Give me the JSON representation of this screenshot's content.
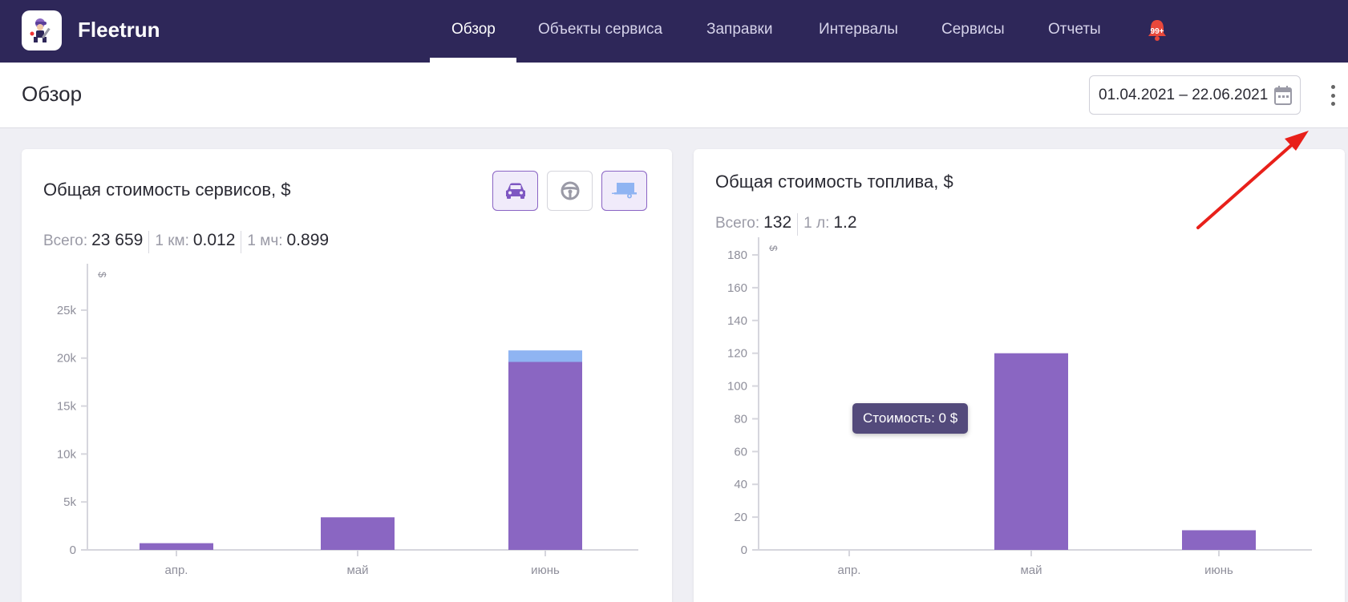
{
  "app": {
    "brand": "Fleetrun"
  },
  "nav": {
    "items": [
      {
        "label": "Обзор",
        "active": true
      },
      {
        "label": "Объекты сервиса",
        "active": false
      },
      {
        "label": "Заправки",
        "active": false
      },
      {
        "label": "Интервалы",
        "active": false
      },
      {
        "label": "Сервисы",
        "active": false
      },
      {
        "label": "Отчеты",
        "active": false
      }
    ],
    "notifications_badge": "99+"
  },
  "page": {
    "title": "Обзор",
    "date_range": "01.04.2021 – 22.06.2021"
  },
  "services_card": {
    "title": "Общая стоимость сервисов, $",
    "stats": [
      {
        "label": "Всего:",
        "value": "23 659"
      },
      {
        "label": "1 км:",
        "value": "0.012"
      },
      {
        "label": "1 мч:",
        "value": "0.899"
      }
    ],
    "filters": [
      {
        "icon": "car-icon",
        "active": true
      },
      {
        "icon": "steering-wheel-icon",
        "active": false
      },
      {
        "icon": "trailer-icon",
        "active": true
      }
    ]
  },
  "fuel_card": {
    "title": "Общая стоимость топлива, $",
    "stats": [
      {
        "label": "Всего:",
        "value": "132"
      },
      {
        "label": "1 л:",
        "value": "1.2"
      }
    ],
    "tooltip": "Стоимость: 0 $"
  },
  "chart_data": [
    {
      "type": "bar",
      "stacked": true,
      "categories": [
        "апр.",
        "май",
        "июнь"
      ],
      "series": [
        {
          "values": [
            700,
            3400,
            19600
          ],
          "color": "#8a66c2"
        },
        {
          "values": [
            0,
            0,
            1200
          ],
          "color": "#8fb4f2"
        }
      ],
      "ylim": [
        0,
        28000
      ],
      "yticks": [
        0,
        5000,
        10000,
        15000,
        20000,
        25000
      ],
      "ytick_labels": [
        "0",
        "5k",
        "10k",
        "15k",
        "20k",
        "25k"
      ],
      "ylabel": "$",
      "grid": false
    },
    {
      "type": "bar",
      "categories": [
        "апр.",
        "май",
        "июнь"
      ],
      "series": [
        {
          "values": [
            0,
            120,
            12
          ],
          "color": "#8a66c2"
        }
      ],
      "ylim": [
        0,
        180
      ],
      "yticks": [
        0,
        20,
        40,
        60,
        80,
        100,
        120,
        140,
        160,
        180
      ],
      "ytick_labels": [
        "0",
        "20",
        "40",
        "60",
        "80",
        "100",
        "120",
        "140",
        "160",
        "180"
      ],
      "ylabel": "$",
      "grid": false
    }
  ]
}
